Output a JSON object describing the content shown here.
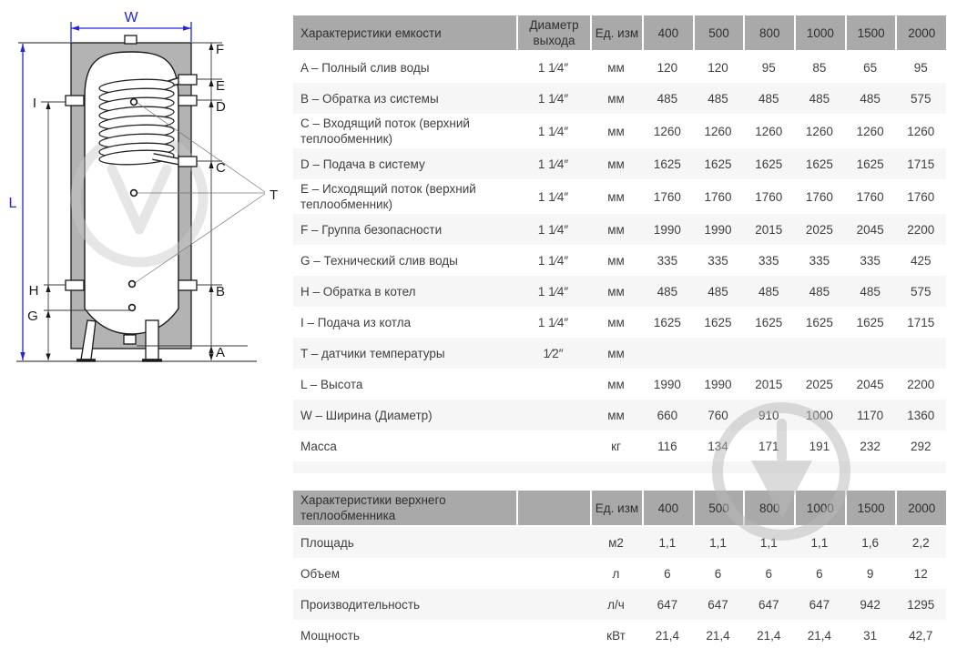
{
  "diagram": {
    "labels": {
      "W": "W",
      "L": "L",
      "F": "F",
      "E": "E",
      "D": "D",
      "C": "C",
      "T": "T",
      "B": "B",
      "A": "A",
      "I": "I",
      "H": "H",
      "G": "G"
    },
    "colors": {
      "dimension_blue": "#2626d9",
      "insulation_gray": "#b3b3b3",
      "outline_black": "#1a1a1a",
      "watermark_gray": "#d6d6d6"
    }
  },
  "table_style": {
    "header_bg": "#a9a9a9",
    "stripe_bg": "#f6f6f6",
    "text_color": "#3f3f3f"
  },
  "tables": [
    {
      "header": {
        "title": "Характеристики емкости",
        "diameter": "Диаметр выхода",
        "unit": "Ед. изм",
        "sizes": [
          "400",
          "500",
          "800",
          "1000",
          "1500",
          "2000"
        ]
      },
      "rows": [
        {
          "label": "A – Полный слив воды",
          "diameter": "1 1⁄4″",
          "unit": "мм",
          "values": [
            "120",
            "120",
            "95",
            "85",
            "65",
            "95"
          ]
        },
        {
          "label": "B – Обратка из системы",
          "diameter": "1 1⁄4″",
          "unit": "мм",
          "values": [
            "485",
            "485",
            "485",
            "485",
            "485",
            "575"
          ]
        },
        {
          "label": "C – Входящий поток (верхний теплообменник)",
          "diameter": "1 1⁄4″",
          "unit": "мм",
          "values": [
            "1260",
            "1260",
            "1260",
            "1260",
            "1260",
            "1260"
          ]
        },
        {
          "label": "D – Подача в систему",
          "diameter": "1 1⁄4″",
          "unit": "мм",
          "values": [
            "1625",
            "1625",
            "1625",
            "1625",
            "1625",
            "1715"
          ]
        },
        {
          "label": "E – Исходящий поток (верхний теплообменник)",
          "diameter": "1 1⁄4″",
          "unit": "мм",
          "values": [
            "1760",
            "1760",
            "1760",
            "1760",
            "1760",
            "1760"
          ]
        },
        {
          "label": "F – Группа безопасности",
          "diameter": "1 1⁄4″",
          "unit": "мм",
          "values": [
            "1990",
            "1990",
            "2015",
            "2025",
            "2045",
            "2200"
          ]
        },
        {
          "label": "G – Технический слив воды",
          "diameter": "1 1⁄4″",
          "unit": "мм",
          "values": [
            "335",
            "335",
            "335",
            "335",
            "335",
            "425"
          ]
        },
        {
          "label": "H – Обратка в котел",
          "diameter": "1 1⁄4″",
          "unit": "мм",
          "values": [
            "485",
            "485",
            "485",
            "485",
            "485",
            "575"
          ]
        },
        {
          "label": "I – Подача из котла",
          "diameter": "1 1⁄4″",
          "unit": "мм",
          "values": [
            "1625",
            "1625",
            "1625",
            "1625",
            "1625",
            "1715"
          ]
        },
        {
          "label": "T – датчики температуры",
          "diameter": "1⁄2″",
          "unit": "мм",
          "values": [
            "",
            "",
            "",
            "",
            "",
            ""
          ]
        },
        {
          "label": "L – Высота",
          "diameter": "",
          "unit": "мм",
          "values": [
            "1990",
            "1990",
            "2015",
            "2025",
            "2045",
            "2200"
          ]
        },
        {
          "label": "W – Ширина (Диаметр)",
          "diameter": "",
          "unit": "мм",
          "values": [
            "660",
            "760",
            "910",
            "1000",
            "1170",
            "1360"
          ]
        },
        {
          "label": "Масса",
          "diameter": "",
          "unit": "кг",
          "values": [
            "116",
            "134",
            "171",
            "191",
            "232",
            "292"
          ]
        }
      ]
    },
    {
      "header": {
        "title": "Характеристики верхнего теплообменника",
        "diameter": "",
        "unit": "Ед. изм",
        "sizes": [
          "400",
          "500",
          "800",
          "1000",
          "1500",
          "2000"
        ]
      },
      "rows": [
        {
          "label": "Площадь",
          "diameter": "",
          "unit": "м2",
          "values": [
            "1,1",
            "1,1",
            "1,1",
            "1,1",
            "1,6",
            "2,2"
          ]
        },
        {
          "label": "Объем",
          "diameter": "",
          "unit": "л",
          "values": [
            "6",
            "6",
            "6",
            "6",
            "9",
            "12"
          ]
        },
        {
          "label": "Производительность",
          "diameter": "",
          "unit": "л/ч",
          "values": [
            "647",
            "647",
            "647",
            "647",
            "942",
            "1295"
          ]
        },
        {
          "label": "Мощность",
          "diameter": "",
          "unit": "кВт",
          "values": [
            "21,4",
            "21,4",
            "21,4",
            "21,4",
            "31",
            "42,7"
          ]
        }
      ]
    }
  ]
}
